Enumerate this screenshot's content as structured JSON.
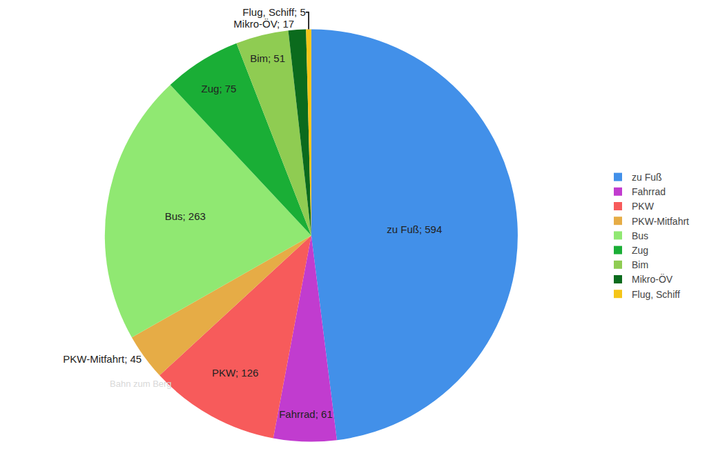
{
  "chart_data": {
    "type": "pie",
    "categories": [
      "zu Fuß",
      "Fahrrad",
      "PKW",
      "PKW-Mitfahrt",
      "Bus",
      "Zug",
      "Bim",
      "Mikro-ÖV",
      "Flug, Schiff"
    ],
    "values": [
      594,
      61,
      126,
      45,
      263,
      75,
      51,
      17,
      5
    ],
    "value_labels": [
      "zu Fuß; 594",
      "Fahrrad; 61",
      "PKW; 126",
      "PKW-Mitfahrt; 45",
      "Bus; 263",
      "Zug; 75",
      "Bim; 51",
      "Mikro-ÖV; 17",
      "Flug, Schiff; 5"
    ],
    "colors": [
      "#4290e9",
      "#c13ccf",
      "#f75b5b",
      "#e6ac46",
      "#90e872",
      "#1aae36",
      "#8fcc52",
      "#0b6b1d",
      "#f5c518"
    ],
    "data_labels": true,
    "legend": "right",
    "annotations": [
      "Bahn zum Berg"
    ]
  }
}
